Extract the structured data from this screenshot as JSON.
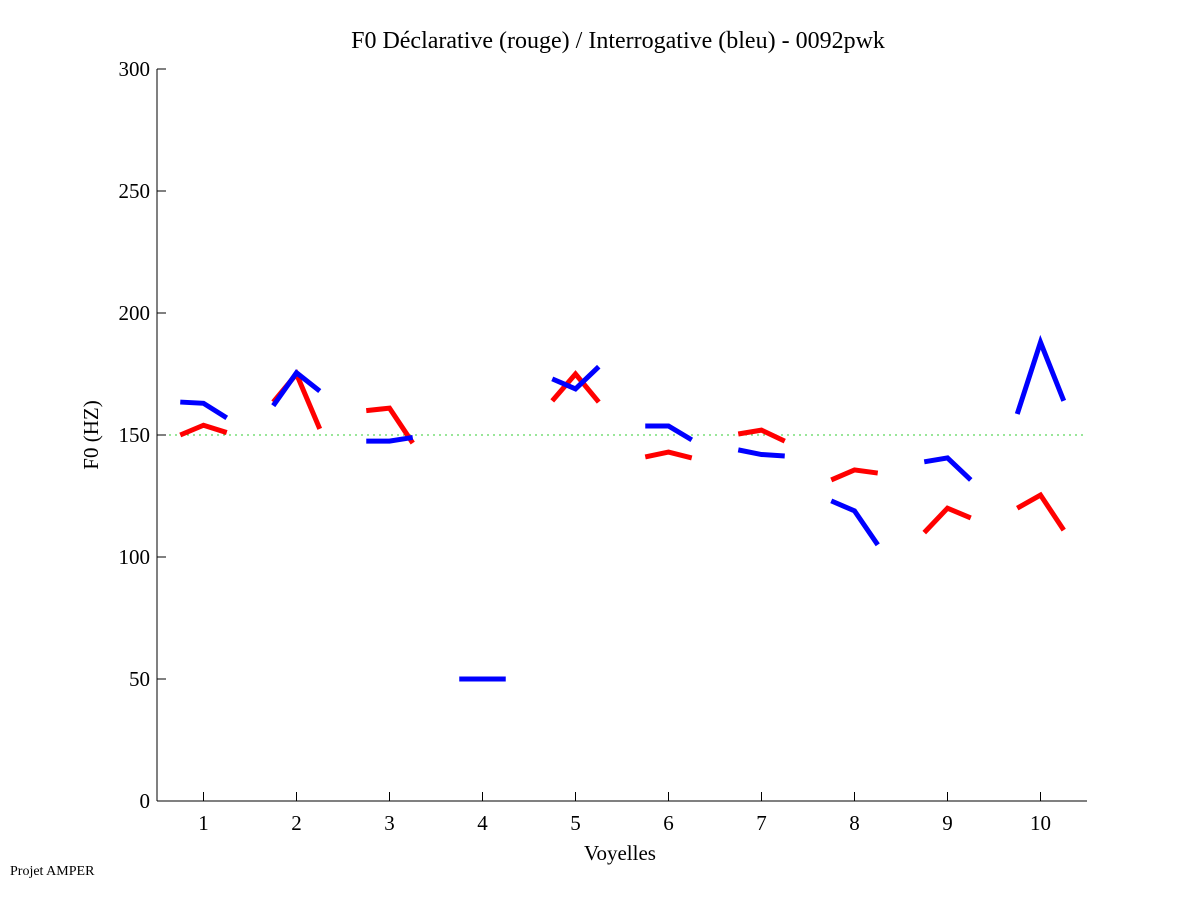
{
  "chart_data": {
    "type": "line",
    "title": "F0 Déclarative (rouge) / Interrogative (bleu) - 0092pwk",
    "xlabel": "Voyelles",
    "ylabel": "F0 (HZ)",
    "xlim": [
      0.5,
      10.5
    ],
    "ylim": [
      0,
      300
    ],
    "xticks": [
      "1",
      "2",
      "3",
      "4",
      "5",
      "6",
      "7",
      "8",
      "9",
      "10"
    ],
    "yticks": [
      "0",
      "50",
      "100",
      "150",
      "200",
      "250",
      "300"
    ],
    "reference_line": {
      "value": 150,
      "color": "#33cc33",
      "style": "dotted"
    },
    "point_offsets": [
      -0.25,
      0,
      0.25
    ],
    "series": [
      {
        "name": "Déclarative (rouge)",
        "color": "#ff0000",
        "segments": [
          {
            "vowel": 1,
            "values": [
              150,
              154,
              151
            ]
          },
          {
            "vowel": 2,
            "values": [
              163.5,
              175,
              152.5
            ]
          },
          {
            "vowel": 3,
            "values": [
              160,
              161,
              146.7
            ]
          },
          {
            "vowel": 5,
            "values": [
              164,
              175,
              163.5
            ]
          },
          {
            "vowel": 6,
            "values": [
              141,
              143,
              140.6
            ]
          },
          {
            "vowel": 7,
            "values": [
              150.4,
              152,
              147.5
            ]
          },
          {
            "vowel": 8,
            "values": [
              131.6,
              135.7,
              134.4
            ]
          },
          {
            "vowel": 9,
            "values": [
              110,
              120,
              116
            ]
          },
          {
            "vowel": 10,
            "values": [
              120,
              125.4,
              111
            ]
          }
        ]
      },
      {
        "name": "Interrogative (bleu)",
        "color": "#0000ff",
        "segments": [
          {
            "vowel": 1,
            "values": [
              163.5,
              163,
              157
            ]
          },
          {
            "vowel": 2,
            "values": [
              162,
              175.5,
              168
            ]
          },
          {
            "vowel": 3,
            "values": [
              147.5,
              147.5,
              149
            ]
          },
          {
            "vowel": 4,
            "values": [
              50,
              50,
              50
            ]
          },
          {
            "vowel": 5,
            "values": [
              173,
              168.9,
              178
            ]
          },
          {
            "vowel": 6,
            "values": [
              153.7,
              153.7,
              148
            ]
          },
          {
            "vowel": 7,
            "values": [
              143.9,
              142,
              141.4
            ]
          },
          {
            "vowel": 8,
            "values": [
              123,
              118.9,
              105
            ]
          },
          {
            "vowel": 9,
            "values": [
              139,
              140.6,
              131.6
            ]
          },
          {
            "vowel": 10,
            "values": [
              158.6,
              188,
              164
            ]
          }
        ]
      }
    ]
  },
  "footer": "Projet AMPER"
}
